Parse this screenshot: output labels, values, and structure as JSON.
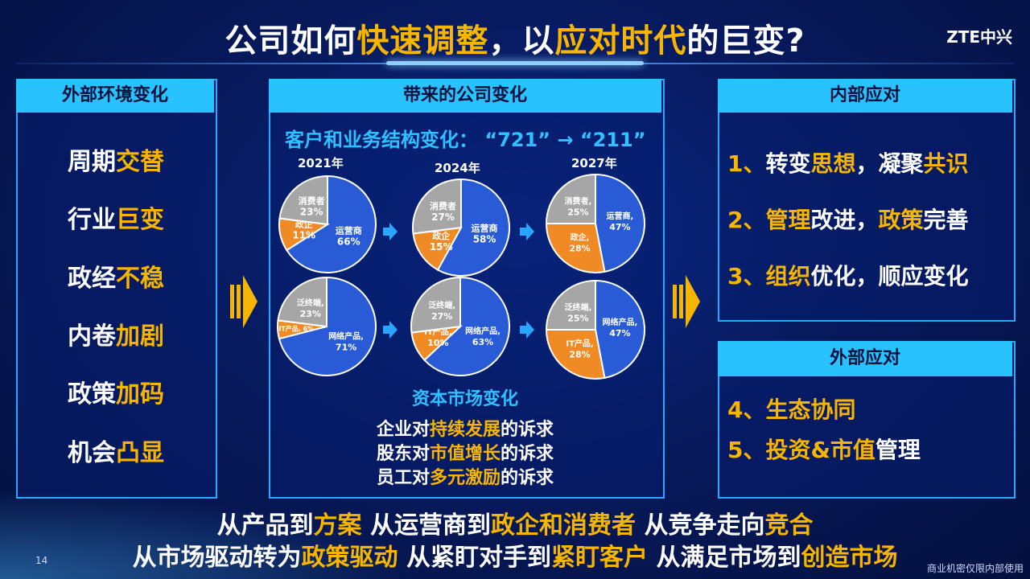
{
  "title": {
    "p1": "公司如何",
    "h1": "快速调整",
    "p2": "，以",
    "h2": "应对时代",
    "p3": "的巨变?"
  },
  "logo": "ZTE中兴",
  "left_panel": {
    "header": "外部环境变化",
    "items": [
      {
        "a": "周期",
        "b": "交替"
      },
      {
        "a": "行业",
        "b": "巨变"
      },
      {
        "a": "政经",
        "b": "不稳"
      },
      {
        "a": "内卷",
        "b": "加剧"
      },
      {
        "a": "政策",
        "b": "加码"
      },
      {
        "a": "机会",
        "b": "凸显"
      }
    ]
  },
  "middle_panel": {
    "header": "带来的公司变化",
    "subtitle": "客户和业务结构变化：  “721” → “211”",
    "years": [
      "2021年",
      "2024年",
      "2027年"
    ],
    "capital_title": "资本市场变化",
    "capital_lines": [
      {
        "a": "企业对",
        "b": "持续发展",
        "c": "的诉求"
      },
      {
        "a": "股东对",
        "b": "市值增长",
        "c": "的诉求"
      },
      {
        "a": "员工对",
        "b": "多元激励",
        "c": "的诉求"
      }
    ]
  },
  "chart_data": [
    {
      "type": "pie",
      "title": "2021年",
      "slices": [
        {
          "label": "运营商",
          "value": 66,
          "text": "66%"
        },
        {
          "label": "政企",
          "value": 11,
          "text": "11%"
        },
        {
          "label": "消费者",
          "value": 23,
          "text": "23%"
        }
      ]
    },
    {
      "type": "pie",
      "title": "2024年",
      "slices": [
        {
          "label": "运营商",
          "value": 58,
          "text": "58%"
        },
        {
          "label": "政企",
          "value": 15,
          "text": "15%"
        },
        {
          "label": "消费者",
          "value": 27,
          "text": "27%"
        }
      ]
    },
    {
      "type": "pie",
      "title": "2027年",
      "slices": [
        {
          "label": "运营商,",
          "value": 47,
          "text": "47%"
        },
        {
          "label": "政企,",
          "value": 28,
          "text": "28%"
        },
        {
          "label": "消费者,",
          "value": 25,
          "text": "25%"
        }
      ]
    },
    {
      "type": "pie",
      "title": "2021年",
      "slices": [
        {
          "label": "网络产品,",
          "value": 71,
          "text": "71%"
        },
        {
          "label": "IT产品, 6%",
          "value": 6,
          "text": ""
        },
        {
          "label": "泛终端,",
          "value": 23,
          "text": "23%"
        }
      ]
    },
    {
      "type": "pie",
      "title": "2024年",
      "slices": [
        {
          "label": "网络产品,",
          "value": 63,
          "text": "63%"
        },
        {
          "label": "IT产品,",
          "value": 10,
          "text": "10%"
        },
        {
          "label": "泛终端,",
          "value": 27,
          "text": "27%"
        }
      ]
    },
    {
      "type": "pie",
      "title": "2027年",
      "slices": [
        {
          "label": "网络产品,",
          "value": 47,
          "text": "47%"
        },
        {
          "label": "IT产品,",
          "value": 28,
          "text": "28%"
        },
        {
          "label": "泛终端,",
          "value": 25,
          "text": "25%"
        }
      ]
    }
  ],
  "colors": {
    "blue": "#2a5bd7",
    "orange": "#f08a24",
    "gray": "#a6a6a6",
    "accent": "#f7b500",
    "header": "#28c3ff"
  },
  "right_panel": {
    "internal_header": "内部应对",
    "internal_items": [
      {
        "n": "1、",
        "a": "转变",
        "b": "思想",
        "c": "，凝聚",
        "d": "共识"
      },
      {
        "n": "2、",
        "a": "",
        "b": "管理",
        "c": "改进，",
        "d": "政策",
        "e": "完善"
      },
      {
        "n": "3、",
        "a": "",
        "b": "组织",
        "c": "优化，顺应变化"
      }
    ],
    "external_header": "外部应对",
    "external_items": [
      {
        "n": "4、",
        "b": "生态协同",
        "c": ""
      },
      {
        "n": "5、",
        "b": "投资&市值",
        "c": "管理"
      }
    ]
  },
  "bottom": {
    "line1": [
      {
        "t": "从产品到",
        "hl": false
      },
      {
        "t": "方案",
        "hl": true
      },
      {
        "t": "  从运营商到",
        "hl": false
      },
      {
        "t": "政企和消费者",
        "hl": true
      },
      {
        "t": "  从竞争走向",
        "hl": false
      },
      {
        "t": "竞合",
        "hl": true
      }
    ],
    "line2": [
      {
        "t": "从市场驱动转为",
        "hl": false
      },
      {
        "t": "政策驱动",
        "hl": true
      },
      {
        "t": " 从紧盯对手到",
        "hl": false
      },
      {
        "t": "紧盯客户",
        "hl": true
      },
      {
        "t": " 从满足市场到",
        "hl": false
      },
      {
        "t": "创造市场",
        "hl": true
      }
    ]
  },
  "page_number": "14",
  "confidential": "商业机密仅限内部使用"
}
